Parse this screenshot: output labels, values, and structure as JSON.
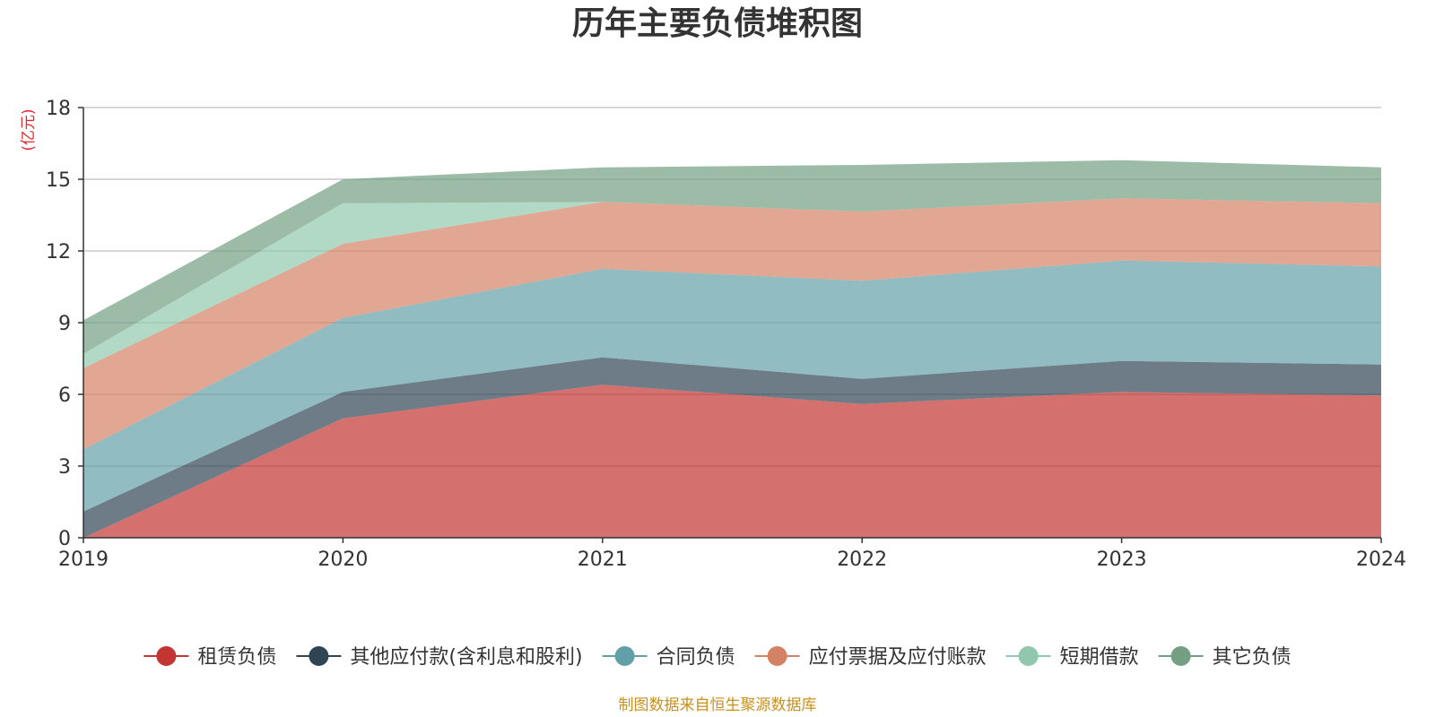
{
  "chart_data": {
    "type": "area",
    "stacked": true,
    "title": "历年主要负债堆积图",
    "unit": "(亿元)",
    "x": [
      "2019",
      "2020",
      "2021",
      "2022",
      "2023",
      "2024"
    ],
    "y_ticks": [
      "0",
      "3",
      "6",
      "9",
      "12",
      "15",
      "18"
    ],
    "ylim": [
      0,
      18
    ],
    "grid": true,
    "legend_position": "bottom",
    "series": [
      {
        "name": "租赁负债",
        "color": "#c23531",
        "values": [
          0.0,
          5.0,
          6.4,
          5.6,
          6.1,
          5.95
        ]
      },
      {
        "name": "其他应付款(含利息和股利)",
        "color": "#2f4554",
        "values": [
          1.1,
          1.1,
          1.15,
          1.05,
          1.3,
          1.3
        ]
      },
      {
        "name": "合同负债",
        "color": "#61a0a8",
        "values": [
          2.6,
          3.1,
          3.7,
          4.1,
          4.2,
          4.1
        ]
      },
      {
        "name": "应付票据及应付账款",
        "color": "#d48265",
        "values": [
          3.4,
          3.1,
          2.8,
          2.9,
          2.6,
          2.65
        ]
      },
      {
        "name": "短期借款",
        "color": "#91c7ae",
        "values": [
          0.6,
          1.7,
          0.0,
          0.0,
          0.0,
          0.0
        ]
      },
      {
        "name": "其它负债",
        "color": "#749f83",
        "values": [
          1.4,
          1.0,
          1.45,
          1.95,
          1.6,
          1.5
        ]
      }
    ]
  },
  "source": "制图数据来自恒生聚源数据库"
}
